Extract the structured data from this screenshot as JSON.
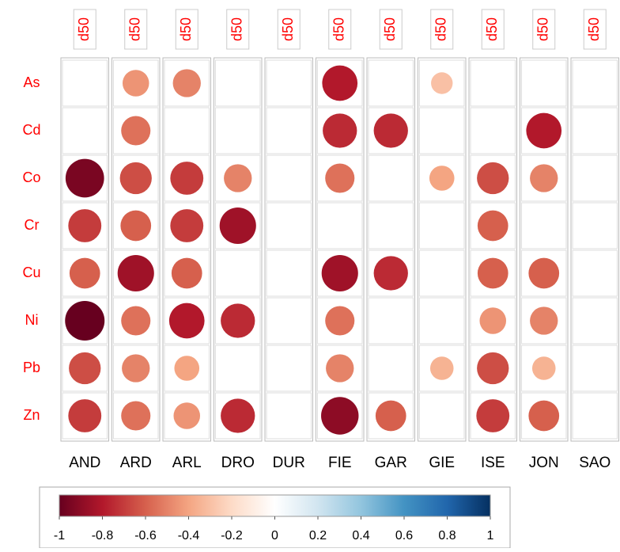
{
  "chart_data": {
    "type": "corrplot",
    "column_headers": [
      "d50",
      "d50",
      "d50",
      "d50",
      "d50",
      "d50",
      "d50",
      "d50",
      "d50",
      "d50",
      "d50"
    ],
    "columns": [
      "AND",
      "ARD",
      "ARL",
      "DRO",
      "DUR",
      "FIE",
      "GAR",
      "GIE",
      "ISE",
      "JON",
      "SAO"
    ],
    "rows": [
      "As",
      "Cd",
      "Co",
      "Cr",
      "Cu",
      "Ni",
      "Pb",
      "Zn"
    ],
    "values": [
      [
        null,
        -0.45,
        -0.5,
        null,
        null,
        -0.8,
        null,
        -0.3,
        null,
        null,
        null
      ],
      [
        null,
        -0.55,
        null,
        null,
        null,
        -0.75,
        -0.75,
        null,
        null,
        -0.8,
        null
      ],
      [
        -0.95,
        -0.65,
        -0.7,
        -0.5,
        null,
        -0.55,
        null,
        -0.4,
        -0.65,
        -0.5,
        null
      ],
      [
        -0.7,
        -0.6,
        -0.7,
        -0.85,
        null,
        null,
        null,
        null,
        -0.6,
        null,
        null
      ],
      [
        -0.6,
        -0.85,
        -0.6,
        null,
        null,
        -0.85,
        -0.75,
        null,
        -0.6,
        -0.6,
        null
      ],
      [
        -1,
        -0.55,
        -0.8,
        -0.75,
        null,
        -0.55,
        null,
        null,
        -0.45,
        -0.5,
        null
      ],
      [
        -0.65,
        -0.5,
        -0.4,
        null,
        null,
        -0.5,
        null,
        -0.35,
        -0.65,
        -0.35,
        null
      ],
      [
        -0.7,
        -0.55,
        -0.45,
        -0.75,
        null,
        -0.9,
        -0.6,
        null,
        -0.7,
        -0.6,
        null
      ]
    ],
    "colorscale": [
      "#67001f",
      "#b2182b",
      "#d6604d",
      "#f4a582",
      "#fddbc7",
      "#ffffff",
      "#d1e5f0",
      "#92c5de",
      "#4393c3",
      "#2166ac",
      "#053061"
    ],
    "zlim": [
      -1,
      1
    ],
    "zticks": [
      -1,
      -0.8,
      -0.6,
      -0.4,
      -0.2,
      0,
      0.2,
      0.4,
      0.6,
      0.8,
      1
    ],
    "label_color": "#ff0000"
  }
}
